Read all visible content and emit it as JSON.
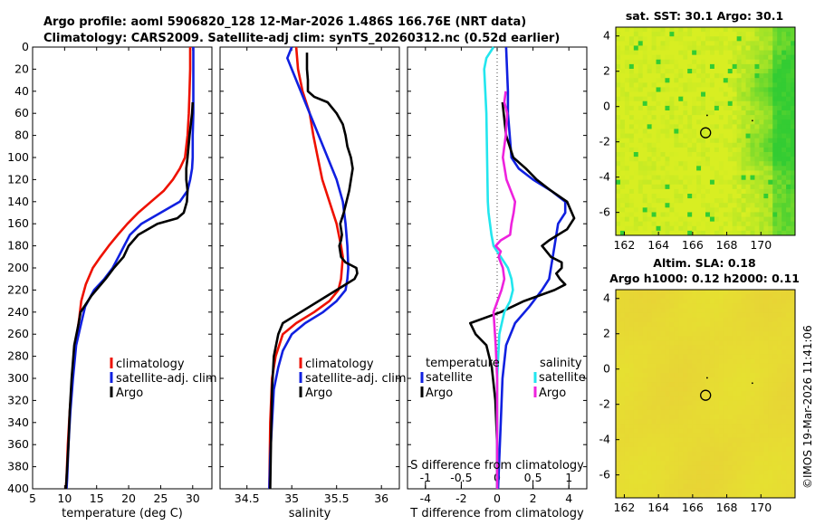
{
  "titles": {
    "line1": "Argo profile: aoml 5906820_128 12-Mar-2026 1.486S 166.76E (NRT data)",
    "line2": "Climatology: CARS2009. Satellite-adj clim: synTS_20260312.nc (0.52d earlier)",
    "sst": "sat. SST: 30.1 Argo: 30.1",
    "sla1": "Altim. SLA: 0.18",
    "sla2": "Argo h1000: 0.12 h2000: 0.11",
    "copyright": "©IMOS 19-Mar-2026 11:41:06"
  },
  "colors": {
    "climatology": "#ee1100",
    "satellite": "#1020e0",
    "argo": "#000000",
    "sat_salinity": "#22e6ee",
    "argo_salinity": "#ee22dd",
    "dotted": "#444444",
    "map_green": "#33cc33",
    "map_yellow": "#d8ee22",
    "sla_yellow": "#e6e230"
  },
  "chart_data": [
    {
      "type": "line",
      "id": "temperature",
      "xlabel": "temperature (deg C)",
      "ylabel": "",
      "xlim": [
        5,
        33
      ],
      "ylim": [
        400,
        0
      ],
      "xticks": [
        5,
        10,
        15,
        20,
        25,
        30
      ],
      "yticks": [
        0,
        20,
        40,
        60,
        80,
        100,
        120,
        140,
        160,
        180,
        200,
        220,
        240,
        260,
        280,
        300,
        320,
        340,
        360,
        380,
        400
      ],
      "legend": [
        "climatology",
        "satellite-adj. clim",
        "Argo"
      ],
      "series": [
        {
          "name": "climatology",
          "color_key": "climatology",
          "x": [
            29.6,
            29.6,
            29.5,
            29.4,
            29.2,
            28.8,
            28.0,
            26.9,
            25.5,
            23.5,
            21.5,
            19.8,
            18.3,
            16.9,
            15.6,
            14.4,
            13.3,
            12.6,
            12.3,
            11.7,
            11.2,
            10.8,
            10.5,
            10.3,
            10.2
          ],
          "y": [
            0,
            20,
            40,
            60,
            80,
            100,
            110,
            120,
            130,
            140,
            150,
            160,
            170,
            180,
            190,
            200,
            215,
            230,
            245,
            270,
            300,
            330,
            360,
            390,
            400
          ]
        },
        {
          "name": "satellite-adj. clim",
          "color_key": "satellite",
          "x": [
            30.1,
            30.1,
            30.1,
            30.1,
            30.0,
            30.0,
            29.9,
            29.6,
            29.2,
            28.0,
            25.0,
            22.0,
            20.2,
            19.3,
            18.4,
            17.5,
            16.2,
            14.6,
            13.2,
            12.6,
            11.8,
            11.3,
            10.9,
            10.6,
            10.4,
            10.3
          ],
          "y": [
            0,
            20,
            40,
            60,
            80,
            100,
            110,
            120,
            130,
            140,
            150,
            160,
            170,
            180,
            190,
            200,
            210,
            220,
            235,
            250,
            270,
            300,
            330,
            360,
            390,
            400
          ]
        },
        {
          "name": "Argo",
          "color_key": "argo",
          "x": [
            30.0,
            29.9,
            29.5,
            29.2,
            29.0,
            29.0,
            29.2,
            29.1,
            28.6,
            27.6,
            24.5,
            21.5,
            20.0,
            19.2,
            17.7,
            16.4,
            14.2,
            12.5,
            12.2,
            11.5,
            11.1,
            10.8,
            10.6,
            10.3,
            10.2
          ],
          "y": [
            50,
            60,
            80,
            100,
            110,
            120,
            130,
            140,
            150,
            155,
            160,
            170,
            180,
            190,
            200,
            210,
            225,
            240,
            250,
            270,
            300,
            330,
            360,
            390,
            400
          ]
        }
      ]
    },
    {
      "type": "line",
      "id": "salinity",
      "xlabel": "salinity",
      "xlim": [
        34.2,
        36.2
      ],
      "ylim": [
        400,
        0
      ],
      "xticks": [
        34.5,
        35,
        35.5,
        36
      ],
      "legend": [
        "climatology",
        "satellite-adj. clim",
        "Argo"
      ],
      "series": [
        {
          "name": "climatology",
          "color_key": "climatology",
          "x": [
            35.05,
            35.07,
            35.12,
            35.2,
            35.24,
            35.29,
            35.34,
            35.42,
            35.5,
            35.55,
            35.57,
            35.56,
            35.55,
            35.52,
            35.42,
            35.25,
            35.05,
            34.9,
            34.82,
            34.78,
            34.76,
            34.75
          ],
          "y": [
            0,
            20,
            40,
            60,
            80,
            100,
            120,
            140,
            160,
            180,
            190,
            200,
            210,
            220,
            230,
            240,
            250,
            260,
            280,
            300,
            340,
            400
          ]
        },
        {
          "name": "satellite-adj. clim",
          "color_key": "satellite",
          "x": [
            35.0,
            34.95,
            35.0,
            35.1,
            35.2,
            35.3,
            35.4,
            35.5,
            35.57,
            35.6,
            35.62,
            35.63,
            35.62,
            35.6,
            35.5,
            35.35,
            35.15,
            35.0,
            34.9,
            34.85,
            34.8,
            34.78,
            34.76,
            34.75
          ],
          "y": [
            0,
            10,
            20,
            40,
            60,
            80,
            100,
            120,
            140,
            160,
            180,
            200,
            210,
            220,
            230,
            240,
            250,
            260,
            275,
            290,
            310,
            340,
            370,
            400
          ]
        },
        {
          "name": "Argo",
          "color_key": "argo",
          "x": [
            35.17,
            35.17,
            35.18,
            35.18,
            35.25,
            35.4,
            35.5,
            35.57,
            35.6,
            35.62,
            35.66,
            35.68,
            35.64,
            35.58,
            35.54,
            35.56,
            35.55,
            35.53,
            35.55,
            35.6,
            35.72,
            35.73,
            35.7,
            35.4,
            35.1,
            34.9,
            34.85,
            34.8,
            34.78,
            34.77,
            34.76
          ],
          "y": [
            5,
            20,
            30,
            40,
            45,
            50,
            60,
            70,
            80,
            90,
            100,
            110,
            130,
            150,
            160,
            170,
            175,
            180,
            190,
            195,
            200,
            205,
            210,
            225,
            240,
            250,
            260,
            280,
            310,
            350,
            400
          ]
        }
      ]
    },
    {
      "type": "line",
      "id": "difference",
      "xlabel": "T difference from climatology",
      "x2label": "S difference from climatology",
      "xlim": [
        -5,
        5
      ],
      "x2lim": [
        -1.25,
        1.25
      ],
      "ylim": [
        400,
        0
      ],
      "xticks": [
        -4,
        -2,
        0,
        2,
        4
      ],
      "x2ticks": [
        -1,
        -0.5,
        0,
        0.5,
        1
      ],
      "legend_headers": [
        "temperature",
        "salinity"
      ],
      "legend": [
        "satellite",
        "Argo",
        "satellite",
        "Argo"
      ],
      "series": [
        {
          "name": "T satellite",
          "color_key": "satellite",
          "axis": "T",
          "x": [
            0.5,
            0.55,
            0.6,
            0.6,
            0.7,
            0.8,
            1.2,
            2.0,
            3.0,
            3.8,
            3.8,
            3.4,
            3.2,
            3.0,
            2.9,
            2.5,
            1.8,
            1.0,
            0.5,
            0.3,
            0.2,
            0.1,
            0.05
          ],
          "y": [
            0,
            20,
            40,
            60,
            80,
            100,
            110,
            120,
            130,
            140,
            150,
            160,
            180,
            200,
            210,
            220,
            235,
            250,
            270,
            300,
            340,
            380,
            400
          ]
        },
        {
          "name": "T Argo",
          "color_key": "argo",
          "axis": "T",
          "x": [
            0.3,
            0.5,
            0.9,
            1.6,
            2.2,
            3.0,
            3.9,
            4.3,
            3.9,
            3.4,
            2.9,
            2.5,
            3.0,
            3.6,
            3.6,
            3.3,
            3.5,
            3.8,
            3.2,
            1.5,
            0.2,
            -1.5,
            -1.2,
            -0.6,
            -0.3,
            -0.1,
            0.0,
            0.0
          ],
          "y": [
            50,
            80,
            100,
            110,
            120,
            130,
            140,
            155,
            165,
            170,
            175,
            180,
            190,
            195,
            200,
            205,
            210,
            215,
            220,
            230,
            240,
            250,
            260,
            270,
            290,
            320,
            360,
            400
          ]
        },
        {
          "name": "S satellite",
          "color_key": "sat_salinity",
          "axis": "S",
          "x": [
            -0.05,
            -0.15,
            -0.18,
            -0.15,
            -0.14,
            -0.13,
            -0.12,
            -0.1,
            -0.08,
            -0.05,
            0.05,
            0.15,
            0.2,
            0.22,
            0.18,
            0.1,
            0.03,
            0.0,
            0.0,
            0.0
          ],
          "y": [
            0,
            10,
            20,
            60,
            100,
            140,
            150,
            160,
            170,
            180,
            190,
            200,
            210,
            220,
            230,
            240,
            260,
            300,
            350,
            400
          ]
        },
        {
          "name": "S Argo",
          "color_key": "argo_salinity",
          "axis": "S",
          "x": [
            0.12,
            0.1,
            0.14,
            0.12,
            0.08,
            0.13,
            0.25,
            0.23,
            0.2,
            0.18,
            0.05,
            -0.02,
            0.05,
            0.02,
            0.08,
            0.1,
            0.06,
            -0.05,
            -0.02,
            0.0,
            0.0
          ],
          "y": [
            40,
            50,
            60,
            80,
            100,
            120,
            140,
            150,
            160,
            170,
            175,
            180,
            185,
            190,
            200,
            210,
            220,
            240,
            270,
            300,
            400
          ]
        }
      ]
    },
    {
      "type": "heatmap",
      "id": "sat-sst-map",
      "title": "sat. SST: 30.1 Argo: 30.1",
      "xlim": [
        161.5,
        172
      ],
      "ylim": [
        -7.3,
        4.5
      ],
      "xticks": [
        162,
        164,
        166,
        168,
        170
      ],
      "yticks": [
        4,
        2,
        0,
        -2,
        -4,
        -6
      ],
      "marker": {
        "lon": 166.76,
        "lat": -1.486
      }
    },
    {
      "type": "heatmap",
      "id": "sla-map",
      "title": "Altim. SLA: 0.18",
      "xlim": [
        161.5,
        172
      ],
      "ylim": [
        -7.3,
        4.5
      ],
      "xticks": [
        162,
        164,
        166,
        168,
        170
      ],
      "yticks": [
        4,
        2,
        0,
        -2,
        -4,
        -6
      ],
      "marker": {
        "lon": 166.76,
        "lat": -1.486
      }
    }
  ]
}
